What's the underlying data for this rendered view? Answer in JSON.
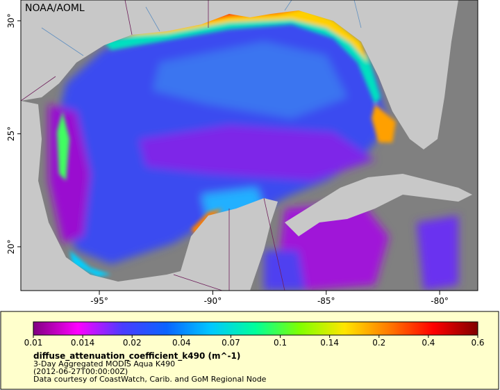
{
  "map": {
    "watermark": "NOAA/AOML",
    "lonlim": [
      -98.46,
      -78.32
    ],
    "latlim": [
      18.06,
      30.92
    ],
    "lon_ticks": [
      {
        "value": -95,
        "label": "-95°"
      },
      {
        "value": -90,
        "label": "-90°"
      },
      {
        "value": -85,
        "label": "-85°"
      },
      {
        "value": -80,
        "label": "-80°"
      }
    ],
    "lat_ticks": [
      {
        "value": 30,
        "label": "30°"
      },
      {
        "value": 25,
        "label": "25°"
      },
      {
        "value": 20,
        "label": "20°"
      }
    ]
  },
  "colorbar": {
    "ticks": [
      0.01,
      0.014,
      0.02,
      0.04,
      0.07,
      0.1,
      0.14,
      0.2,
      0.4,
      0.6
    ],
    "colors": [
      "#800080",
      "#ff00ff",
      "#4b3cff",
      "#0a64ff",
      "#00c8ff",
      "#00ff9a",
      "#80ff00",
      "#ffe600",
      "#ff7a00",
      "#ff0000",
      "#800000"
    ]
  },
  "legend": {
    "variable": "diffuse_attenuation_coefficient_k490 (m^-1)",
    "dataset": "3-Day Aggregated MODIS Aqua K490",
    "time": "(2012-06-27T00:00:00Z)",
    "credit": "Data courtesy of CoastWatch, Carib. and GoM Regional Node"
  }
}
